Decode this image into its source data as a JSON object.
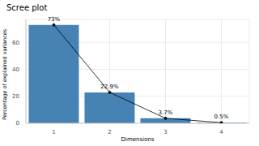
{
  "chart_data": {
    "type": "bar",
    "title": "Scree plot",
    "x_label": "Dimensions",
    "y_label": "Percentage of explained variances",
    "categories": [
      "1",
      "2",
      "3",
      "4"
    ],
    "series": [
      {
        "type": "bar",
        "color": "#4682b4",
        "values": [
          73,
          22.9,
          3.7,
          0.5
        ],
        "value_labels": [
          "73%",
          "22.9%",
          "3.7%",
          "0.5%"
        ]
      },
      {
        "type": "line",
        "color": "#000000",
        "marker": "circle",
        "values": [
          73,
          22.9,
          3.7,
          0.5
        ]
      }
    ],
    "ylim": [
      0,
      77
    ],
    "yticks": [
      0,
      20,
      40,
      60
    ],
    "grid": true,
    "data_labels": true
  }
}
